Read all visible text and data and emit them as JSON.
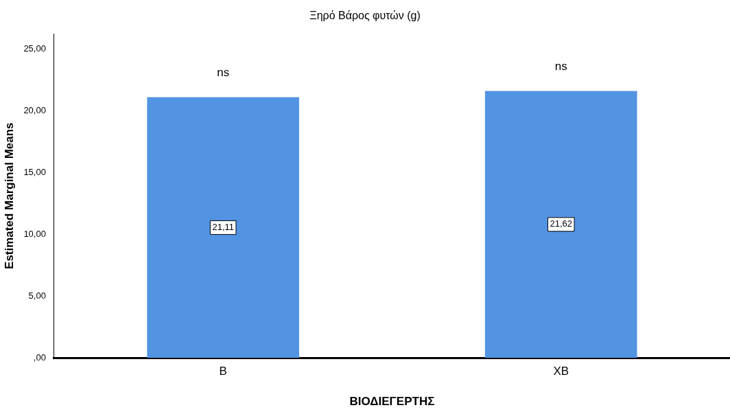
{
  "chart_data": {
    "type": "bar",
    "title": "Ξηρό Βάρος φυτών (g)",
    "xlabel": "ΒΙΟΔΙΕΓΕΡΤΗΣ",
    "ylabel": "Estimated Marginal Means",
    "categories": [
      "B",
      "XB"
    ],
    "values": [
      21.11,
      21.62
    ],
    "color": "#5294e2",
    "value_labels": [
      "21,11",
      "21,62"
    ],
    "ylim": [
      0,
      26.25
    ],
    "yticks": [
      {
        "value": 0,
        "label": ",00"
      },
      {
        "value": 5,
        "label": "5,00"
      },
      {
        "value": 10,
        "label": "10,00"
      },
      {
        "value": 15,
        "label": "15,00"
      },
      {
        "value": 20,
        "label": "20,00"
      },
      {
        "value": 25,
        "label": "25,00"
      }
    ],
    "annotations": [
      "ns",
      "ns"
    ],
    "grid": false,
    "legend": false
  }
}
